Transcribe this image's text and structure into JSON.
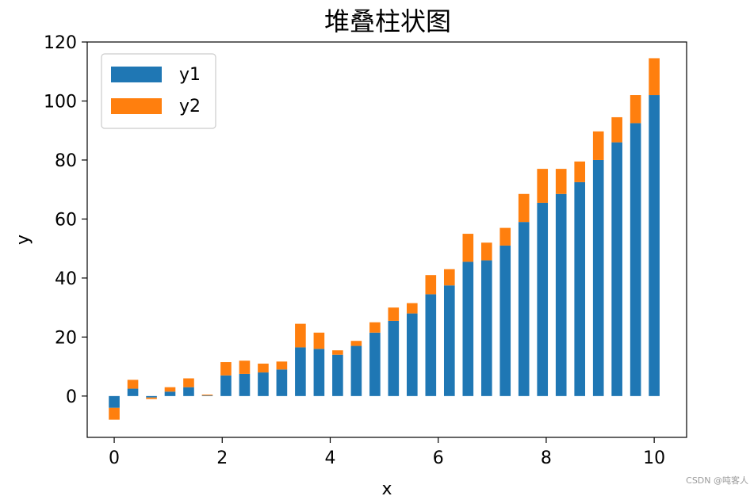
{
  "colors": {
    "y1": "#1f77b4",
    "y2": "#ff7f0e",
    "axis": "#000000",
    "legend_border": "#cccccc"
  },
  "watermark": "CSDN @吨客人",
  "chart_data": {
    "type": "bar",
    "stacked": true,
    "title": "堆叠柱状图",
    "xlabel": "x",
    "ylabel": "y",
    "xlim": [
      -0.5,
      10.6
    ],
    "ylim": [
      -14,
      120
    ],
    "xticks": [
      0,
      2,
      4,
      6,
      8,
      10
    ],
    "yticks": [
      0,
      20,
      40,
      60,
      80,
      100,
      120
    ],
    "grid": false,
    "legend_position": "top-left",
    "x": [
      0,
      0.345,
      0.69,
      1.034,
      1.379,
      1.724,
      2.069,
      2.414,
      2.759,
      3.103,
      3.448,
      3.793,
      4.138,
      4.483,
      4.828,
      5.172,
      5.517,
      5.862,
      6.207,
      6.552,
      6.897,
      7.241,
      7.586,
      7.931,
      8.276,
      8.621,
      8.966,
      9.31,
      9.655,
      10.0
    ],
    "bar_width": 0.2,
    "series": [
      {
        "name": "y1",
        "values": [
          -4,
          2.5,
          -0.5,
          1.5,
          3,
          0.2,
          7,
          7.5,
          8,
          9,
          16.5,
          16,
          14,
          17,
          21.5,
          25.5,
          28,
          34.5,
          37.5,
          45.5,
          46,
          51,
          59,
          65.5,
          68.5,
          72.5,
          80,
          86,
          92.5,
          102
        ]
      },
      {
        "name": "y2",
        "values": [
          -4,
          3,
          -0.5,
          1.5,
          3,
          0.3,
          4.5,
          4.5,
          3,
          2.7,
          8,
          5.5,
          1.5,
          1.7,
          3.5,
          4.5,
          3.5,
          6.5,
          5.5,
          9.5,
          6,
          6,
          9.5,
          11.5,
          8.5,
          7,
          9.7,
          8.5,
          9.5,
          12.5
        ]
      }
    ]
  }
}
